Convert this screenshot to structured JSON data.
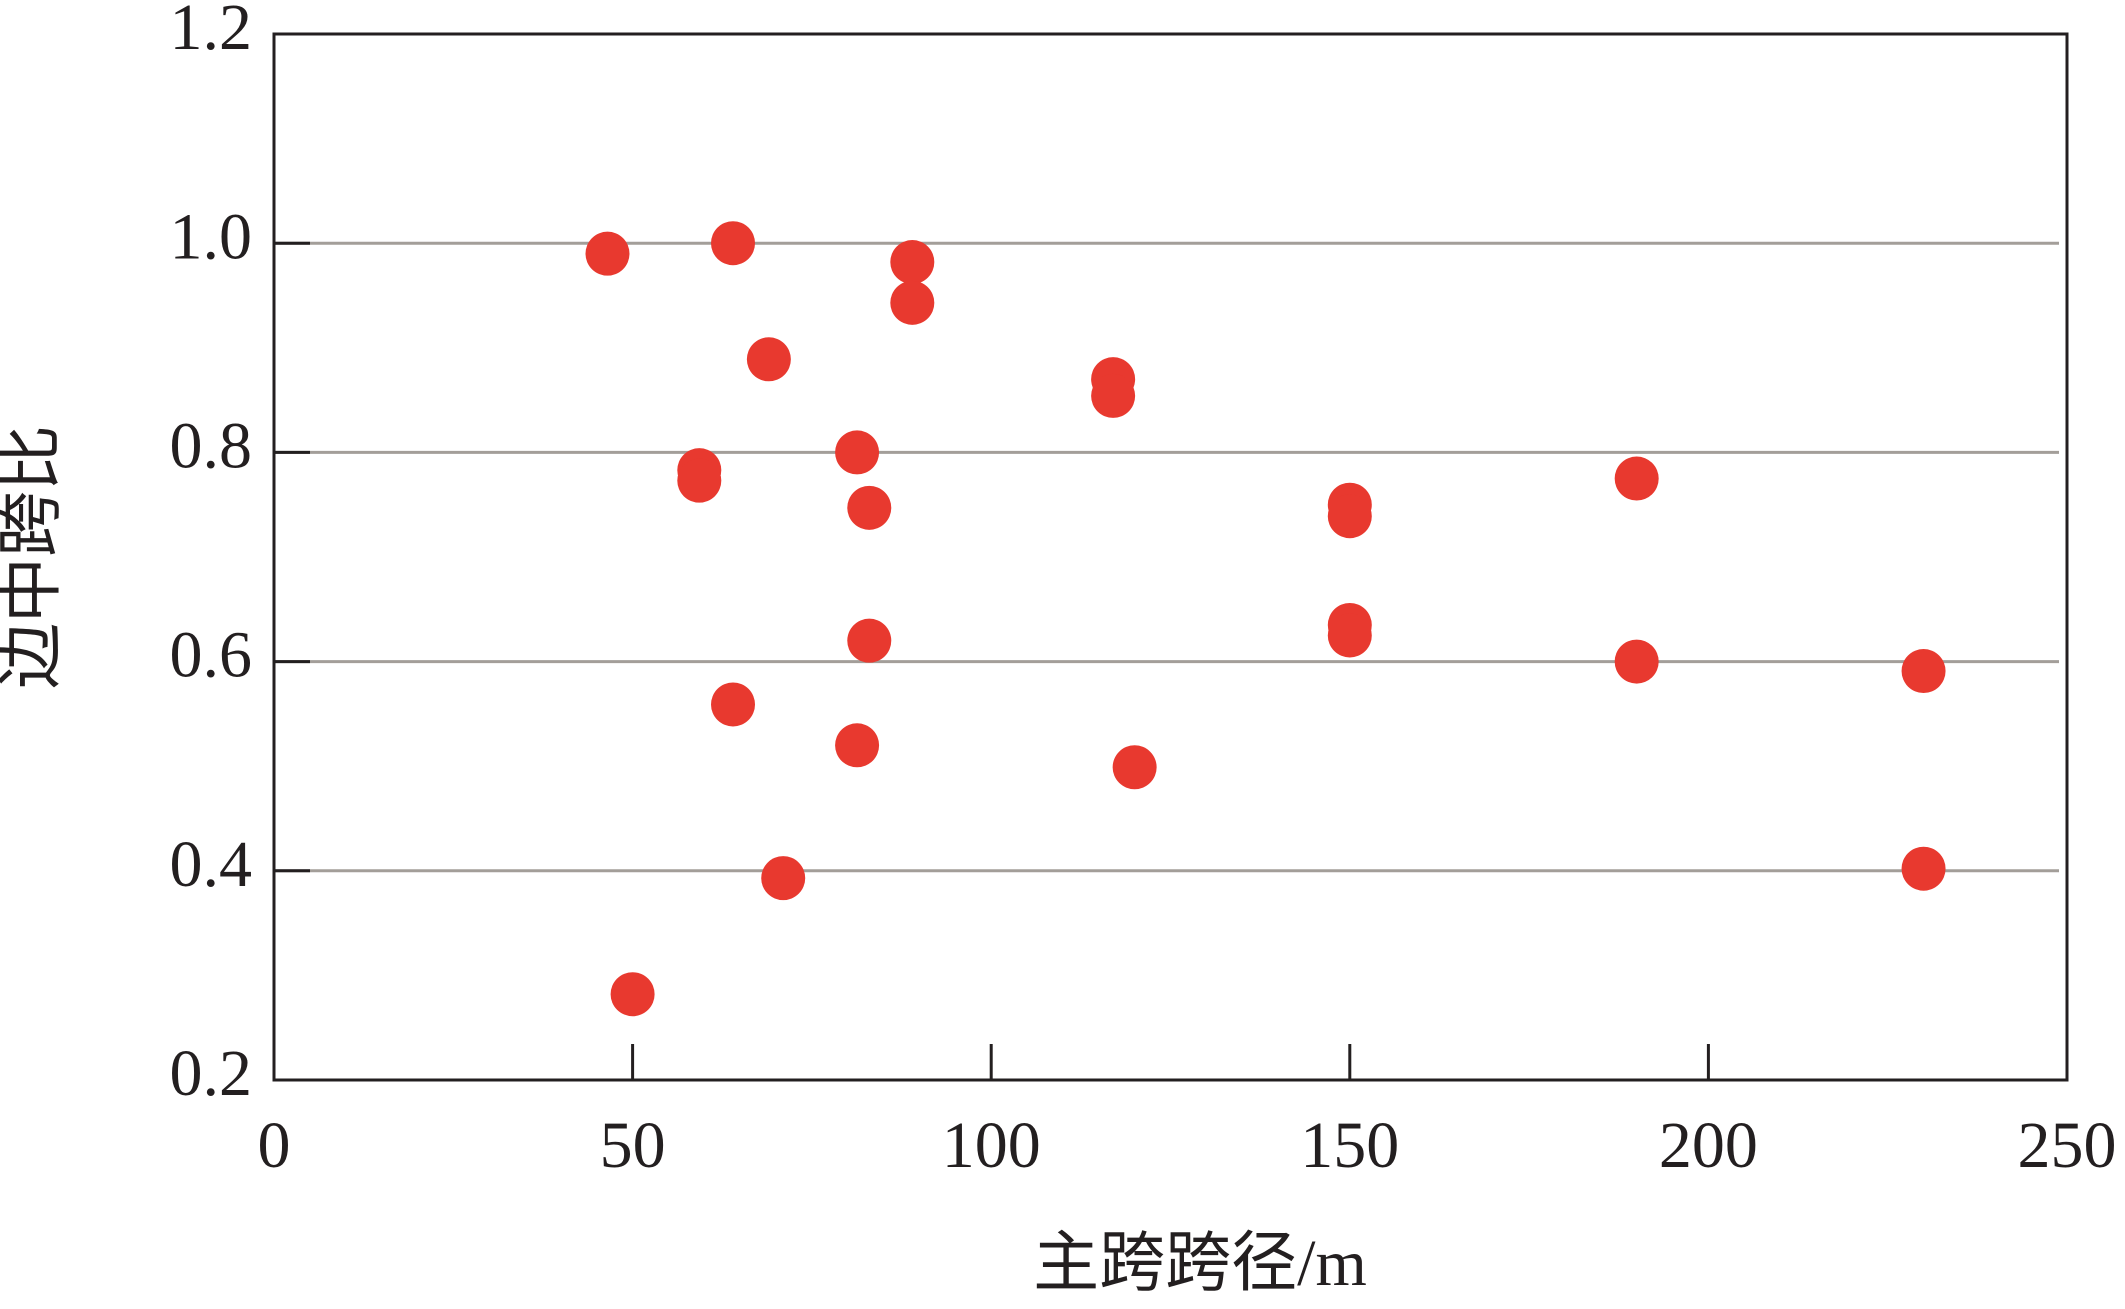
{
  "chart_data": {
    "type": "scatter",
    "x_label": "主跨跨径/m",
    "y_label": "边中跨比",
    "x": [
      46.5,
      64,
      89,
      89,
      69,
      117,
      117,
      59.3,
      59.3,
      81.3,
      83,
      150,
      150,
      190,
      83,
      150,
      150,
      190,
      230,
      64,
      81.3,
      120,
      71,
      230,
      50
    ],
    "y": [
      0.99,
      1.0,
      0.982,
      0.943,
      0.889,
      0.87,
      0.854,
      0.783,
      0.773,
      0.8,
      0.747,
      0.75,
      0.739,
      0.775,
      0.62,
      0.635,
      0.625,
      0.6,
      0.591,
      0.559,
      0.52,
      0.499,
      0.393,
      0.402,
      0.282
    ],
    "color": "#e8392f",
    "xlim": [
      0,
      250
    ],
    "xticks": [
      0,
      50,
      100,
      150,
      200,
      250
    ],
    "ylim": [
      0.2,
      1.2
    ],
    "yticks": [
      0.2,
      0.4,
      0.6,
      0.8,
      {
        "value": 1,
        "label": "1.0"
      },
      1.2
    ],
    "grid": true
  }
}
